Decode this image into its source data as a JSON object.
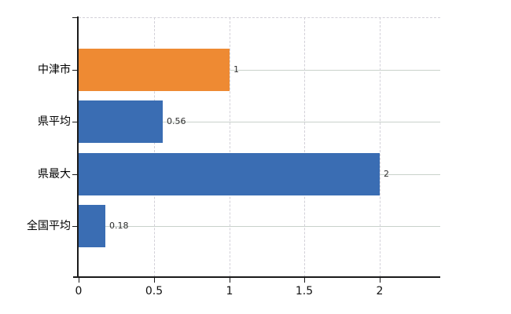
{
  "chart_data": {
    "type": "bar",
    "orientation": "horizontal",
    "title": "",
    "xlabel": "",
    "ylabel": "",
    "categories": [
      "中津市",
      "県平均",
      "県最大",
      "全国平均"
    ],
    "values": [
      1,
      0.56,
      2,
      0.18
    ],
    "value_labels": [
      "1",
      "0.56",
      "2",
      "0.18"
    ],
    "bar_colors": [
      "#ee8a33",
      "#3a6db3",
      "#3a6db3",
      "#3a6db3"
    ],
    "x_tick_values": [
      0,
      0.5,
      1,
      1.5,
      2
    ],
    "x_tick_labels": [
      "0",
      "0.5",
      "1",
      "1.5",
      "2"
    ],
    "xlim": [
      0,
      2.4
    ],
    "grid": "on",
    "legend": "none",
    "colors": {
      "highlight_bar": "#ee8a33",
      "default_bar": "#3a6db3",
      "axis": "#1a1a1a",
      "hgrid": "#c9d2cb",
      "vgrid": "#d2d0d8",
      "background": "#ffffff"
    }
  }
}
